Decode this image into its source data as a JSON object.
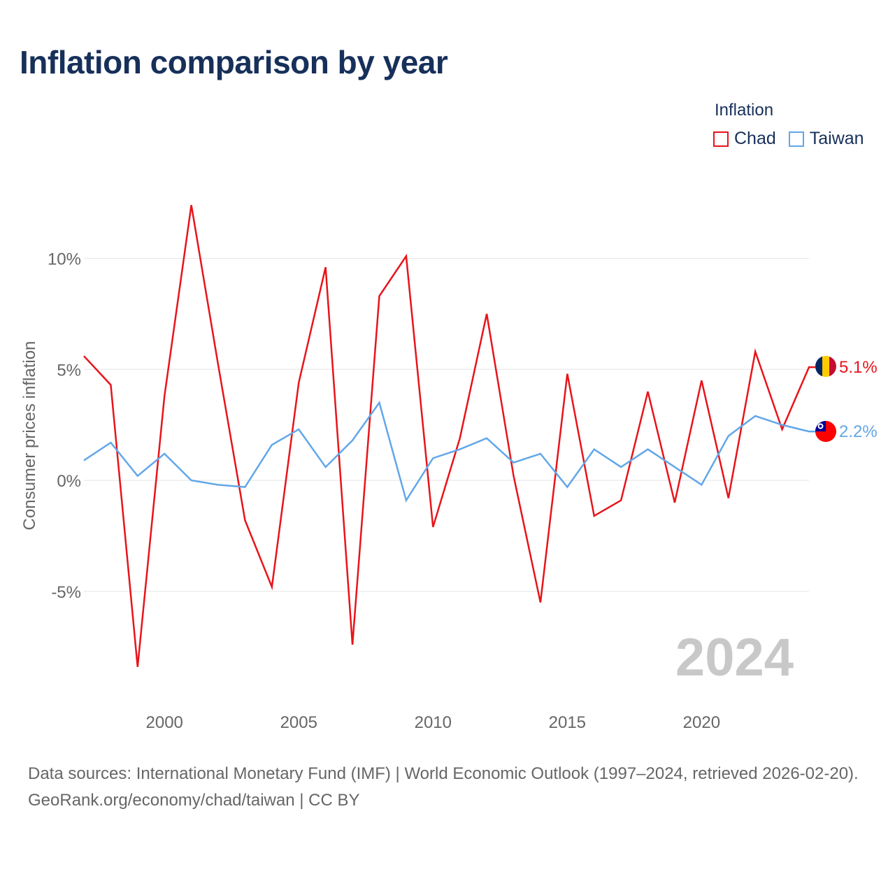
{
  "title": "Inflation comparison by year",
  "legend": {
    "title": "Inflation",
    "items": [
      {
        "label": "Chad",
        "color": "#e8141a"
      },
      {
        "label": "Taiwan",
        "color": "#62a7e8"
      }
    ]
  },
  "chart_data": {
    "type": "line",
    "title": "Inflation comparison by year",
    "xlabel": "",
    "ylabel": "Consumer prices inflation",
    "x": [
      1997,
      1998,
      1999,
      2000,
      2001,
      2002,
      2003,
      2004,
      2005,
      2006,
      2007,
      2008,
      2009,
      2010,
      2011,
      2012,
      2013,
      2014,
      2015,
      2016,
      2017,
      2018,
      2019,
      2020,
      2021,
      2022,
      2023,
      2024
    ],
    "xlim": [
      1997,
      2024
    ],
    "xticks": [
      2000,
      2005,
      2010,
      2015,
      2020
    ],
    "xtick_labels": [
      "2000",
      "2005",
      "2010",
      "2015",
      "2020"
    ],
    "ylim": [
      -10,
      12.5
    ],
    "yticks": [
      -5,
      0,
      5,
      10
    ],
    "ytick_labels": [
      "-5%",
      "0%",
      "5%",
      "10%"
    ],
    "grid": true,
    "legend_position": "top-right",
    "watermark_year": "2024",
    "series": [
      {
        "name": "Chad",
        "color": "#e8141a",
        "end_label": "5.1%",
        "values": [
          5.6,
          4.3,
          -8.4,
          3.8,
          12.4,
          5.2,
          -1.8,
          -4.8,
          4.4,
          9.6,
          -7.4,
          8.3,
          10.1,
          -2.1,
          1.9,
          7.5,
          0.2,
          -5.5,
          4.8,
          -1.6,
          -0.9,
          4.0,
          -1.0,
          4.5,
          -0.8,
          5.8,
          2.3,
          5.1
        ]
      },
      {
        "name": "Taiwan",
        "color": "#62a7e8",
        "end_label": "2.2%",
        "values": [
          0.9,
          1.7,
          0.2,
          1.2,
          0.0,
          -0.2,
          -0.3,
          1.6,
          2.3,
          0.6,
          1.8,
          3.5,
          -0.9,
          1.0,
          1.4,
          1.9,
          0.8,
          1.2,
          -0.3,
          1.4,
          0.6,
          1.4,
          0.6,
          -0.2,
          2.0,
          2.9,
          2.5,
          2.2
        ]
      }
    ]
  },
  "footer": {
    "sources": "Data sources: International Monetary Fund (IMF) | World Economic Outlook (1997–2024, retrieved 2026-02-20).",
    "link": "GeoRank.org/economy/chad/taiwan | CC BY"
  }
}
